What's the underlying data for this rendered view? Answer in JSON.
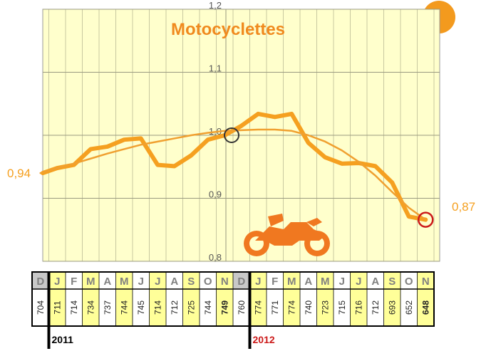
{
  "chart_data": {
    "type": "line",
    "title": "Motocyclettes",
    "y_ticks": [
      "1,2",
      "1,1",
      "1,0",
      "0,9",
      "0,8"
    ],
    "ylim": [
      0.8,
      1.2
    ],
    "grid": true,
    "months": [
      "D",
      "J",
      "F",
      "M",
      "A",
      "M",
      "J",
      "J",
      "A",
      "S",
      "O",
      "N",
      "D",
      "J",
      "F",
      "M",
      "A",
      "M",
      "J",
      "J",
      "A",
      "S",
      "O",
      "N"
    ],
    "values": [
      "704",
      "711",
      "714",
      "734",
      "737",
      "744",
      "745",
      "714",
      "712",
      "725",
      "744",
      "749",
      "760",
      "774",
      "771",
      "774",
      "740",
      "723",
      "715",
      "716",
      "712",
      "693",
      "652",
      "648"
    ],
    "series": [
      {
        "values": [
          0.94,
          0.948,
          0.953,
          0.978,
          0.982,
          0.993,
          0.995,
          0.953,
          0.951,
          0.968,
          0.993,
          1.0,
          1.015,
          1.034,
          1.029,
          1.034,
          0.988,
          0.965,
          0.955,
          0.956,
          0.951,
          0.925,
          0.871,
          0.866
        ]
      },
      {
        "values": [
          0.94,
          0.948,
          0.955,
          0.963,
          0.971,
          0.978,
          0.985,
          0.99,
          0.995,
          1.0,
          1.004,
          1.007,
          1.008,
          1.009,
          1.009,
          1.007,
          1.0,
          0.99,
          0.976,
          0.958,
          0.936,
          0.91,
          0.885,
          0.866
        ]
      }
    ],
    "start_label": "0,94",
    "end_label": "0,87",
    "years": [
      "2011",
      "2012"
    ],
    "colors": {
      "line": "#f5a020",
      "trend": "#f0a030",
      "plot_bg": "#ffffcc",
      "title": "#f08a1e",
      "sun": "#f39a1e",
      "moto": "#f07820",
      "ref_circle": "#333333",
      "end_circle": "#cc1a1a",
      "year2012": "#cc1a1a"
    },
    "highlight_value": "749",
    "highlight_last_value": "648"
  }
}
